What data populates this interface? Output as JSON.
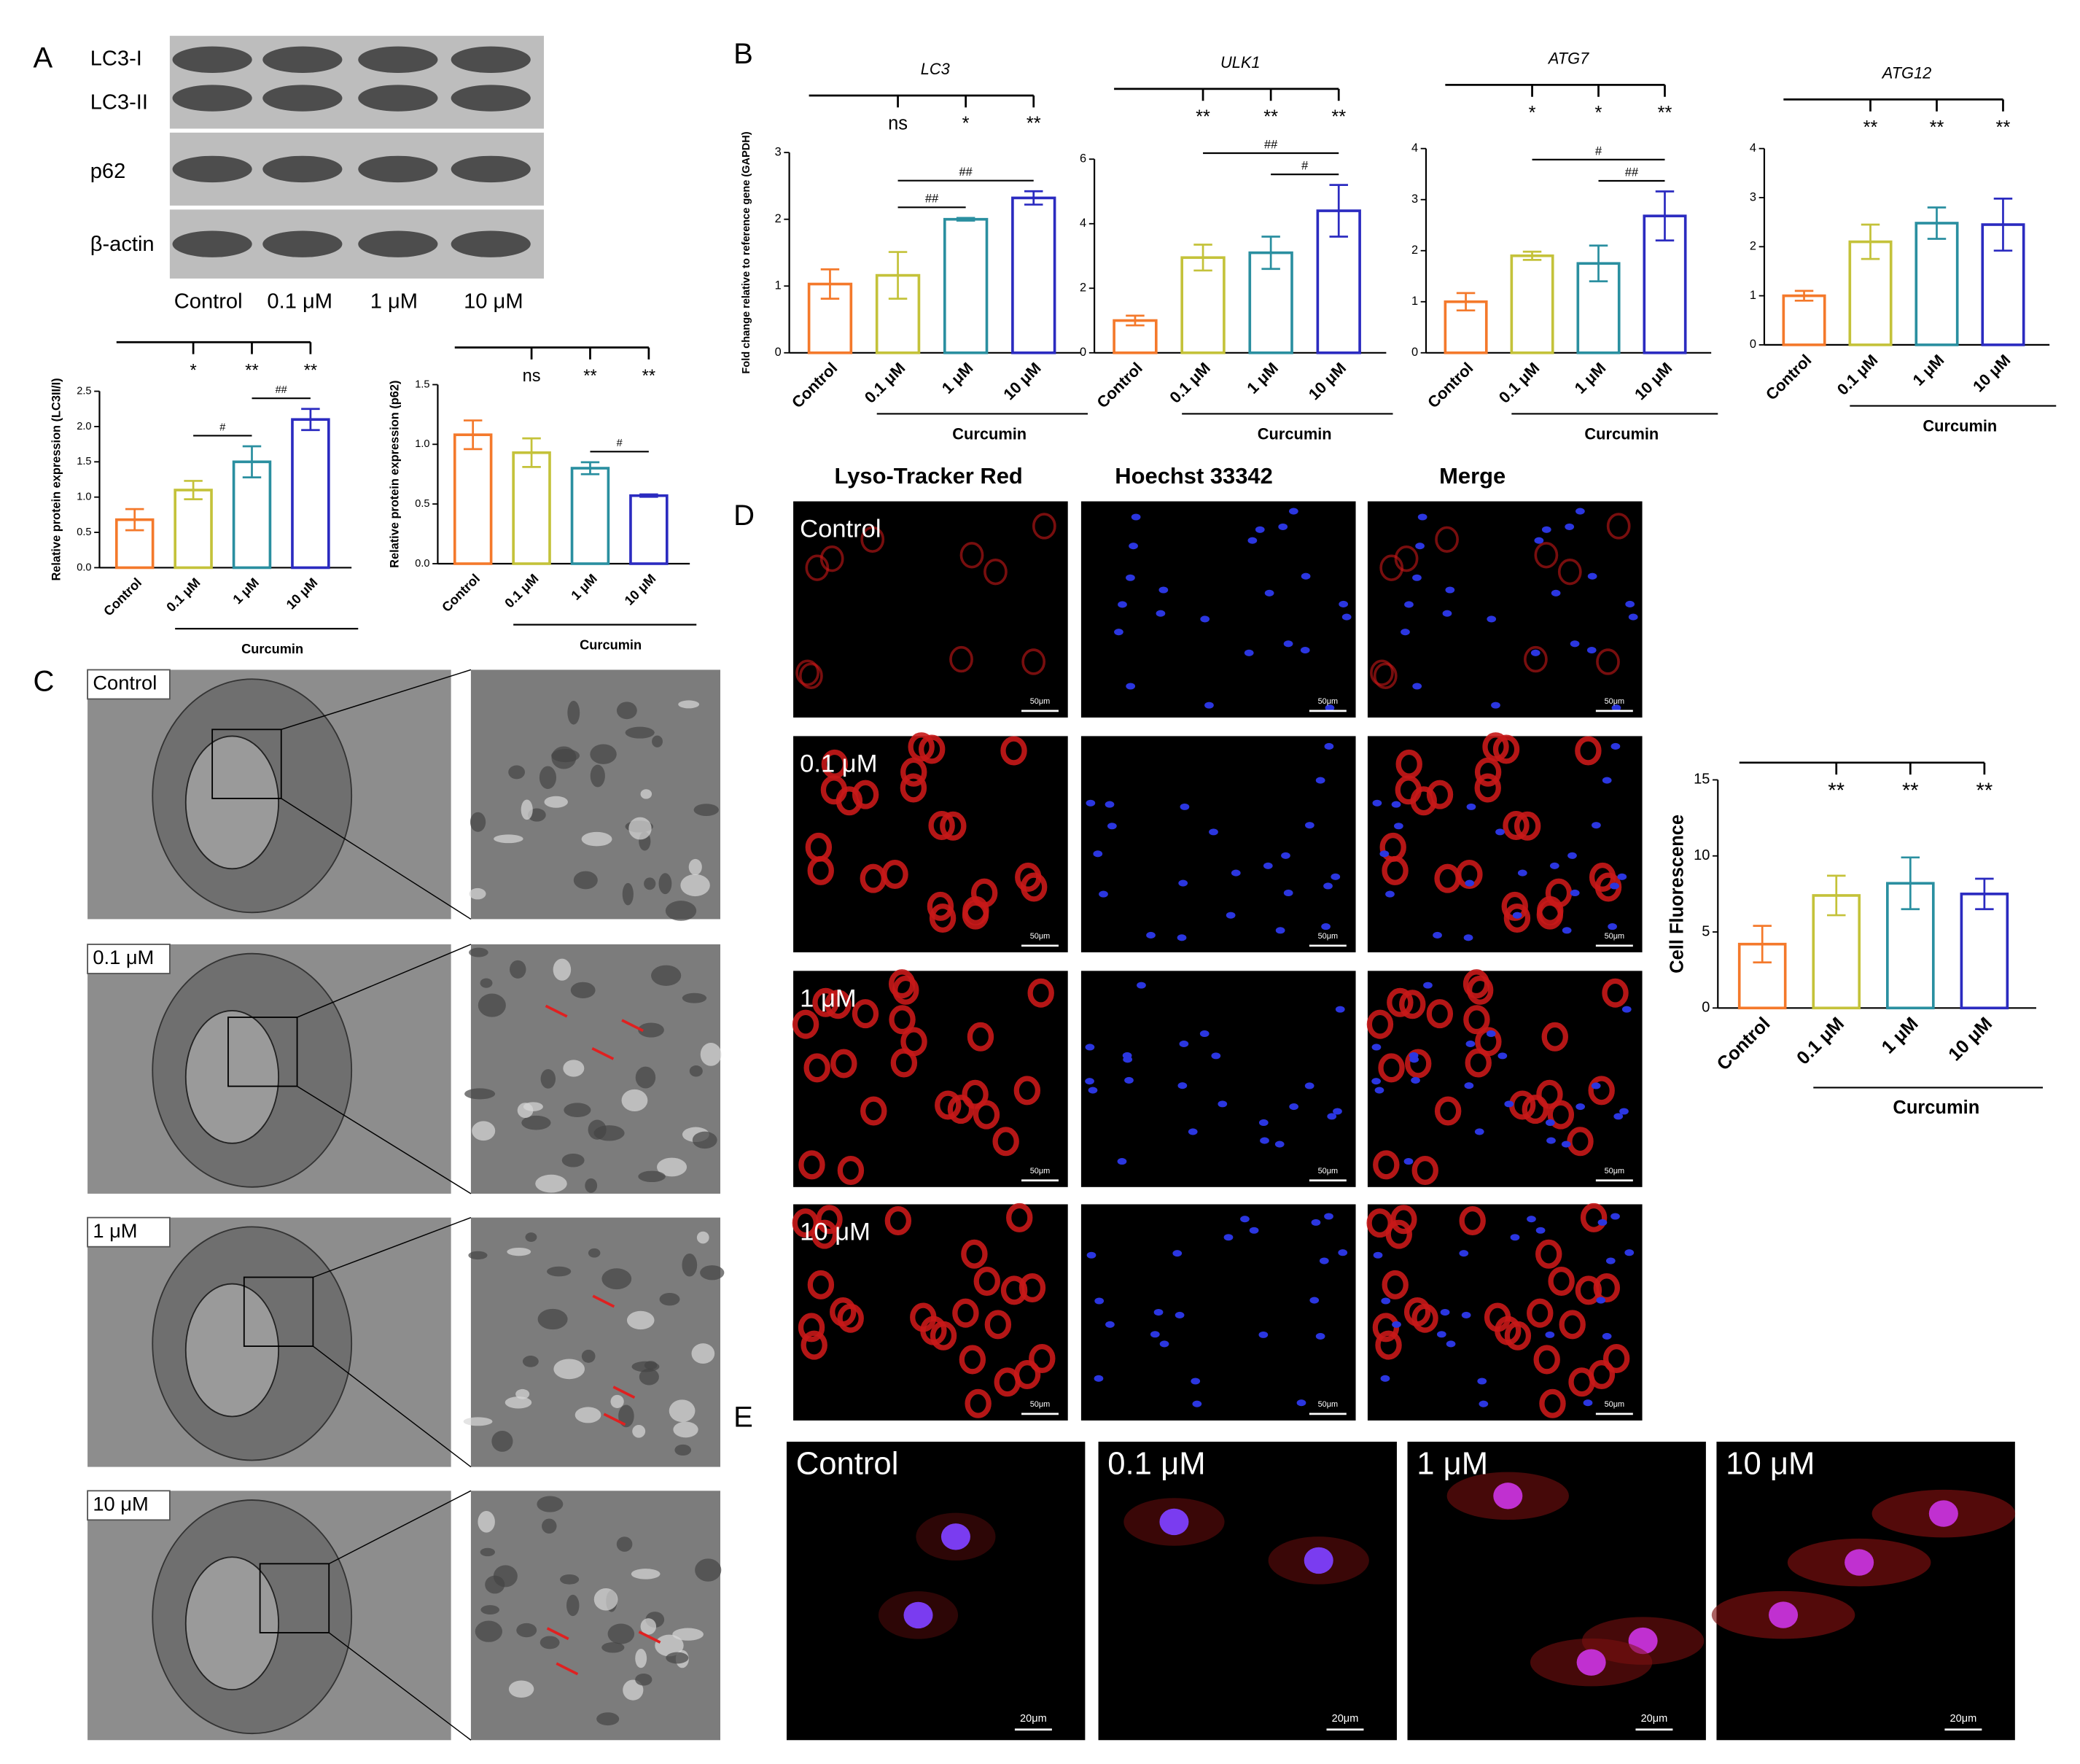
{
  "panels": [
    "A",
    "B",
    "C",
    "D",
    "E"
  ],
  "western_blot": {
    "bands": [
      "LC3-I",
      "LC3-II",
      "p62",
      "β-actin"
    ],
    "lanes": [
      "Control",
      "0.1 μM",
      "1 μM",
      "10 μM"
    ]
  },
  "tem": {
    "labels": [
      "Control",
      "0.1 μM",
      "1 μM",
      "10 μM"
    ]
  },
  "lysotracker": {
    "columns": [
      "Lyso-Tracker Red",
      "Hoechst 33342",
      "Merge"
    ],
    "rows": [
      "Control",
      "0.1 μM",
      "1 μM",
      "10 μM"
    ],
    "scale_bar": "50μm"
  },
  "immunofluorescence": {
    "labels": [
      "Control",
      "0.1 μM",
      "1 μM",
      "10 μM"
    ],
    "scale_bar": "20μm"
  },
  "chart_data": [
    {
      "type": "bar",
      "y_label": "Relative protein expression (LC3II/I)",
      "categories": [
        "Control",
        "0.1 μM",
        "1 μM",
        "10 μM"
      ],
      "values": [
        0.68,
        1.1,
        1.5,
        2.1
      ],
      "errors": [
        0.15,
        0.13,
        0.22,
        0.15
      ],
      "colors": [
        "#f4792b",
        "#c4c23a",
        "#2a8fa0",
        "#2b2bc0"
      ],
      "ylim": [
        0,
        2.5
      ],
      "yticks": [
        {
          "value": 0,
          "label": "0.0"
        },
        0.5,
        {
          "value": 1,
          "label": "1.0"
        },
        1.5,
        {
          "value": 2,
          "label": "2.0"
        },
        2.5
      ],
      "significance": [
        null,
        "*",
        "**",
        "**"
      ],
      "comparisons": [
        {
          "between": [
            "0.1 μM",
            "1 μM"
          ],
          "label": "#"
        },
        {
          "between": [
            "1 μM",
            "10 μM"
          ],
          "label": "##"
        }
      ],
      "group_label": "Curcumin"
    },
    {
      "type": "bar",
      "y_label": "Relative protein expression (p62)",
      "categories": [
        "Control",
        "0.1 μM",
        "1 μM",
        "10 μM"
      ],
      "values": [
        1.08,
        0.93,
        0.8,
        0.57
      ],
      "errors": [
        0.12,
        0.12,
        0.05,
        0.01
      ],
      "colors": [
        "#f4792b",
        "#c4c23a",
        "#2a8fa0",
        "#2b2bc0"
      ],
      "ylim": [
        0,
        1.5
      ],
      "yticks": [
        {
          "value": 0,
          "label": "0.0"
        },
        0.5,
        {
          "value": 1,
          "label": "1.0"
        },
        1.5
      ],
      "significance": [
        null,
        "ns",
        "**",
        "**"
      ],
      "comparisons": [
        {
          "between": [
            "1 μM",
            "10 μM"
          ],
          "label": "#"
        }
      ],
      "group_label": "Curcumin"
    },
    {
      "type": "bar",
      "title": "LC3",
      "y_label": "Fold change relative to reference gene (GAPDH)",
      "categories": [
        "Control",
        "0.1 μM",
        "1 μM",
        "10 μM"
      ],
      "values": [
        1.03,
        1.16,
        2.0,
        2.32
      ],
      "errors": [
        0.22,
        0.35,
        0.02,
        0.1
      ],
      "colors": [
        "#f4792b",
        "#c4c23a",
        "#2a8fa0",
        "#2b2bc0"
      ],
      "ylim": [
        0,
        3
      ],
      "yticks": [
        0,
        1,
        2,
        3
      ],
      "significance": [
        null,
        "ns",
        "*",
        "**"
      ],
      "comparisons": [
        {
          "between": [
            "0.1 μM",
            "1 μM"
          ],
          "label": "##"
        },
        {
          "between": [
            "0.1 μM",
            "10 μM"
          ],
          "label": "##"
        }
      ],
      "group_label": "Curcumin"
    },
    {
      "type": "bar",
      "title": "ULK1",
      "categories": [
        "Control",
        "0.1 μM",
        "1 μM",
        "10 μM"
      ],
      "values": [
        1.0,
        2.95,
        3.1,
        4.4
      ],
      "errors": [
        0.15,
        0.4,
        0.5,
        0.8
      ],
      "colors": [
        "#f4792b",
        "#c4c23a",
        "#2a8fa0",
        "#2b2bc0"
      ],
      "ylim": [
        0,
        6
      ],
      "yticks": [
        0,
        2,
        4,
        6
      ],
      "significance": [
        null,
        "**",
        "**",
        "**"
      ],
      "comparisons": [
        {
          "between": [
            "1 μM",
            "10 μM"
          ],
          "label": "#"
        },
        {
          "between": [
            "0.1 μM",
            "10 μM"
          ],
          "label": "##"
        }
      ],
      "group_label": "Curcumin"
    },
    {
      "type": "bar",
      "title": "ATG7",
      "categories": [
        "Control",
        "0.1 μM",
        "1 μM",
        "10 μM"
      ],
      "values": [
        1.0,
        1.9,
        1.75,
        2.68
      ],
      "errors": [
        0.17,
        0.08,
        0.35,
        0.48
      ],
      "colors": [
        "#f4792b",
        "#c4c23a",
        "#2a8fa0",
        "#2b2bc0"
      ],
      "ylim": [
        0,
        4
      ],
      "yticks": [
        0,
        1,
        2,
        3,
        4
      ],
      "significance": [
        null,
        "*",
        "*",
        "**"
      ],
      "comparisons": [
        {
          "between": [
            "1 μM",
            "10 μM"
          ],
          "label": "##"
        },
        {
          "between": [
            "0.1 μM",
            "10 μM"
          ],
          "label": "#"
        }
      ],
      "group_label": "Curcumin"
    },
    {
      "type": "bar",
      "title": "ATG12",
      "categories": [
        "Control",
        "0.1 μM",
        "1 μM",
        "10 μM"
      ],
      "values": [
        1.0,
        2.1,
        2.48,
        2.45
      ],
      "errors": [
        0.1,
        0.35,
        0.32,
        0.53
      ],
      "colors": [
        "#f4792b",
        "#c4c23a",
        "#2a8fa0",
        "#2b2bc0"
      ],
      "ylim": [
        0,
        4
      ],
      "yticks": [
        0,
        1,
        2,
        3,
        4
      ],
      "significance": [
        null,
        "**",
        "**",
        "**"
      ],
      "group_label": "Curcumin"
    },
    {
      "type": "bar",
      "y_label": "Cell Fluorescence",
      "categories": [
        "Control",
        "0.1 μM",
        "1 μM",
        "10 μM"
      ],
      "values": [
        4.2,
        7.4,
        8.2,
        7.5
      ],
      "errors": [
        1.2,
        1.3,
        1.7,
        1.0
      ],
      "colors": [
        "#f4792b",
        "#c4c23a",
        "#2a8fa0",
        "#2b2bc0"
      ],
      "ylim": [
        0,
        15
      ],
      "yticks": [
        0,
        5,
        10,
        15
      ],
      "significance": [
        null,
        "**",
        "**",
        "**"
      ],
      "group_label": "Curcumin"
    }
  ]
}
